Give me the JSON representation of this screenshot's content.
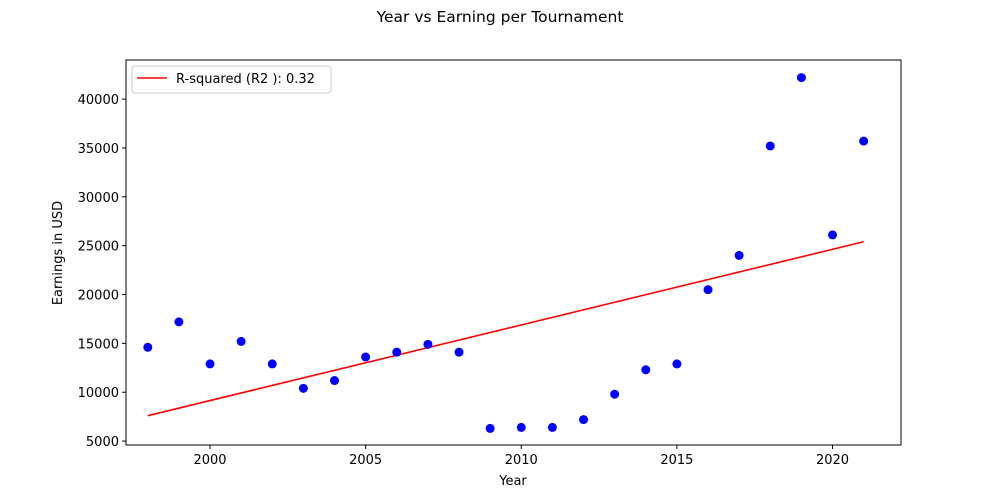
{
  "chart_data": {
    "type": "scatter",
    "title": "Year vs Earning per Tournament",
    "xlabel": "Year",
    "ylabel": "Earnings in USD",
    "xlim": [
      1997.3,
      2022.2
    ],
    "ylim": [
      4600,
      44000
    ],
    "xticks": [
      2000,
      2005,
      2010,
      2015,
      2020
    ],
    "yticks": [
      5000,
      10000,
      15000,
      20000,
      25000,
      30000,
      35000,
      40000
    ],
    "grid": false,
    "legend_position": "upper-left",
    "colors": {
      "points": "#0000ff",
      "fit_line": "#ff0000"
    },
    "scatter": {
      "x": [
        1998,
        1999,
        2000,
        2001,
        2002,
        2003,
        2004,
        2005,
        2006,
        2007,
        2008,
        2009,
        2010,
        2011,
        2012,
        2013,
        2014,
        2015,
        2016,
        2017,
        2018,
        2019,
        2020,
        2021
      ],
      "y": [
        14600,
        17200,
        12900,
        15200,
        12900,
        10400,
        11200,
        13600,
        14100,
        14900,
        14100,
        6300,
        6400,
        6400,
        7200,
        9800,
        12300,
        12900,
        20500,
        24000,
        35200,
        42200,
        26100,
        35700
      ]
    },
    "fit_line": {
      "name": "R-squared (R2 ): 0.32",
      "x": [
        1998,
        2021
      ],
      "y": [
        7600,
        25400
      ]
    }
  }
}
